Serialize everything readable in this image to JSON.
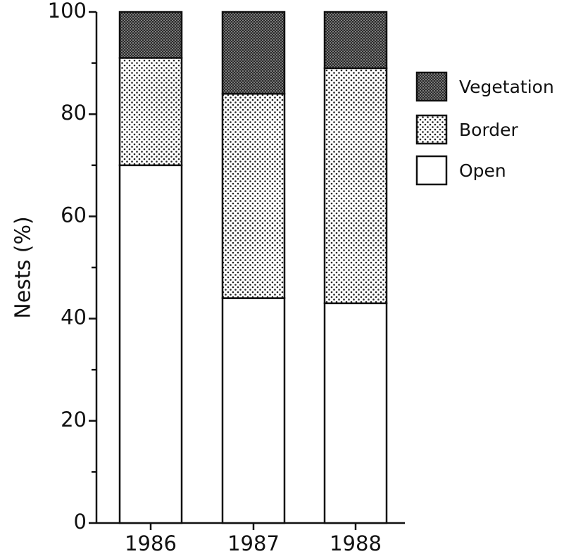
{
  "chart_data": {
    "type": "stacked_bar",
    "ylabel": "Nests (%)",
    "categories": [
      "1986",
      "1987",
      "1988"
    ],
    "series": [
      {
        "name": "Open",
        "color": "#ffffff",
        "pattern": "none",
        "values": [
          70,
          44,
          43
        ]
      },
      {
        "name": "Border",
        "color": "#d0d0d0",
        "pattern": "dots",
        "values": [
          21,
          40,
          46
        ]
      },
      {
        "name": "Vegetation",
        "color": "#444444",
        "pattern": "crosshatch",
        "values": [
          9,
          16,
          11
        ]
      }
    ],
    "ylim": [
      0,
      100
    ],
    "yticks": [
      0,
      20,
      40,
      60,
      80,
      100
    ],
    "minor_yticks": [
      10,
      30,
      50,
      70,
      90
    ],
    "grid": false,
    "legend": "right"
  }
}
